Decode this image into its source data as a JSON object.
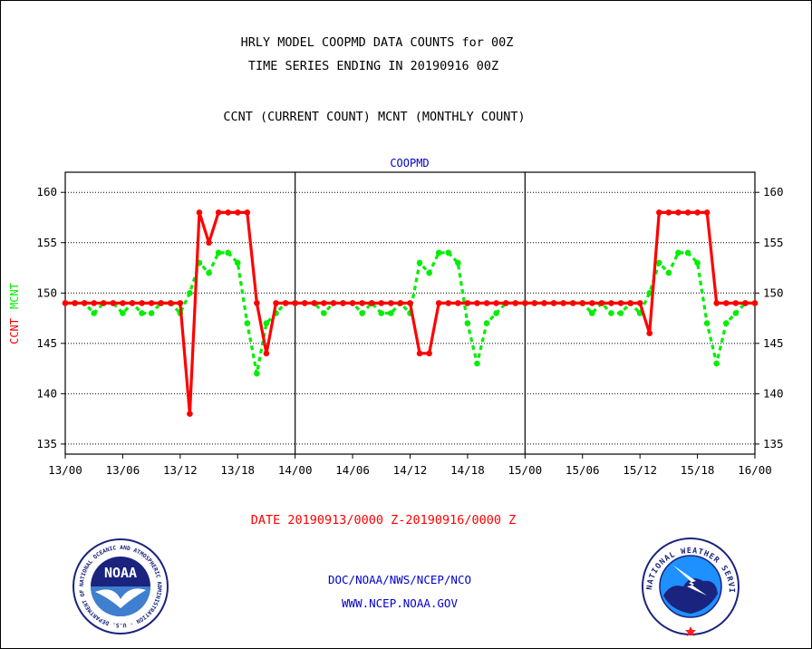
{
  "header": {
    "title_line1": "HRLY MODEL COOPMD DATA COUNTS for 00Z",
    "title_line2": "TIME SERIES ENDING IN 20190916 00Z",
    "title_line3": "CCNT (CURRENT COUNT) MCNT (MONTHLY COUNT)"
  },
  "footer": {
    "date_range": "DATE 20190913/0000 Z-20190916/0000 Z",
    "org": "DOC/NOAA/NWS/NCEP/NCO",
    "url": "WWW.NCEP.NOAA.GOV"
  },
  "logos": {
    "noaa_text": "NOAA",
    "noaa_ring": "NATIONAL OCEANIC AND ATMOSPHERIC ADMINISTRATION · U.S. DEPARTMENT OF COMMERCE",
    "nws_ring": "NATIONAL WEATHER SERVICE"
  },
  "colors": {
    "ccnt": "#ff0000",
    "mcnt": "#00ee00",
    "title": "#000000",
    "label_blue": "#0000cc",
    "date_red": "#ff0000"
  },
  "chart_data": {
    "type": "line",
    "title": "COOPMD",
    "ylabel_parts": [
      {
        "text": "CCNT",
        "color": "#ff0000"
      },
      {
        "text": "MCNT",
        "color": "#00ee00"
      }
    ],
    "x_ticks": [
      "13/00",
      "13/06",
      "13/12",
      "13/18",
      "14/00",
      "14/06",
      "14/12",
      "14/18",
      "15/00",
      "15/06",
      "15/12",
      "15/18",
      "16/00"
    ],
    "x_unit": "hours since 13/00",
    "xlim": [
      0,
      72
    ],
    "ylim": [
      134,
      162
    ],
    "y_ticks": [
      135,
      140,
      145,
      150,
      155,
      160
    ],
    "grid": true,
    "day_separators": [
      24,
      48
    ],
    "series": [
      {
        "name": "CCNT",
        "color": "#ff0000",
        "style": "solid",
        "x": [
          0,
          1,
          2,
          3,
          4,
          5,
          6,
          7,
          8,
          9,
          10,
          11,
          12,
          13,
          14,
          15,
          16,
          17,
          18,
          19,
          20,
          21,
          22,
          23,
          24,
          25,
          26,
          27,
          28,
          29,
          30,
          31,
          32,
          33,
          34,
          35,
          36,
          37,
          38,
          39,
          40,
          41,
          42,
          43,
          44,
          45,
          46,
          47,
          48,
          49,
          50,
          51,
          52,
          53,
          54,
          55,
          56,
          57,
          58,
          59,
          60,
          61,
          62,
          63,
          64,
          65,
          66,
          67,
          68,
          69,
          70,
          71,
          72
        ],
        "values": [
          149,
          149,
          149,
          149,
          149,
          149,
          149,
          149,
          149,
          149,
          149,
          149,
          149,
          138,
          158,
          155,
          158,
          158,
          158,
          158,
          149,
          144,
          149,
          149,
          149,
          149,
          149,
          149,
          149,
          149,
          149,
          149,
          149,
          149,
          149,
          149,
          149,
          144,
          144,
          149,
          149,
          149,
          149,
          149,
          149,
          149,
          149,
          149,
          149,
          149,
          149,
          149,
          149,
          149,
          149,
          149,
          149,
          149,
          149,
          149,
          149,
          146,
          158,
          158,
          158,
          158,
          158,
          158,
          149,
          149,
          149,
          149,
          149
        ]
      },
      {
        "name": "MCNT",
        "color": "#00ee00",
        "style": "dashed",
        "x": [
          0,
          1,
          2,
          3,
          4,
          5,
          6,
          7,
          8,
          9,
          10,
          11,
          12,
          13,
          14,
          15,
          16,
          17,
          18,
          19,
          20,
          21,
          22,
          23,
          24,
          25,
          26,
          27,
          28,
          29,
          30,
          31,
          32,
          33,
          34,
          35,
          36,
          37,
          38,
          39,
          40,
          41,
          42,
          43,
          44,
          45,
          46,
          47,
          48,
          49,
          50,
          51,
          52,
          53,
          54,
          55,
          56,
          57,
          58,
          59,
          60,
          61,
          62,
          63,
          64,
          65,
          66,
          67,
          68,
          69,
          70,
          71,
          72
        ],
        "values": [
          149,
          149,
          149,
          148,
          149,
          149,
          148,
          149,
          148,
          148,
          149,
          149,
          148,
          150,
          153,
          152,
          154,
          154,
          153,
          147,
          142,
          147,
          148,
          149,
          149,
          149,
          149,
          148,
          149,
          149,
          149,
          148,
          149,
          148,
          148,
          149,
          148,
          153,
          152,
          154,
          154,
          153,
          147,
          143,
          147,
          148,
          149,
          149,
          149,
          149,
          149,
          149,
          149,
          149,
          149,
          148,
          149,
          148,
          148,
          149,
          148,
          150,
          153,
          152,
          154,
          154,
          153,
          147,
          143,
          147,
          148,
          149,
          149
        ]
      }
    ]
  }
}
